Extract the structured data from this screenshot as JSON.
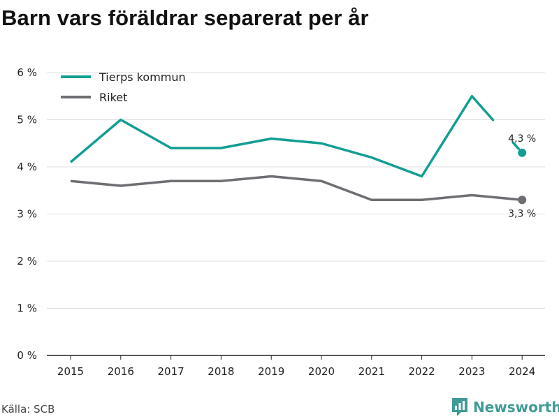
{
  "title": "Barn vars föräldrar separerat per år",
  "source": "Källa: SCB",
  "brand": {
    "name": "Newsworthy",
    "icon": "newsworthy-logo-icon",
    "color": "#3f9b96"
  },
  "chart_data": {
    "type": "line",
    "x": [
      "2015",
      "2016",
      "2017",
      "2018",
      "2019",
      "2020",
      "2021",
      "2022",
      "2023",
      "2024"
    ],
    "series": [
      {
        "name": "Tierps kommun",
        "color": "#139e93",
        "values": [
          4.1,
          5.0,
          4.4,
          4.4,
          4.6,
          4.5,
          4.2,
          3.8,
          5.5,
          4.3
        ],
        "end_label": "4,3 %"
      },
      {
        "name": "Riket",
        "color": "#6e6e73",
        "values": [
          3.7,
          3.6,
          3.7,
          3.7,
          3.8,
          3.7,
          3.3,
          3.3,
          3.4,
          3.3
        ],
        "end_label": "3,3 %"
      }
    ],
    "ylim": [
      0,
      6
    ],
    "yticks": [
      0,
      1,
      2,
      3,
      4,
      5,
      6
    ],
    "ytick_labels": [
      "0 %",
      "1 %",
      "2 %",
      "3 %",
      "4 %",
      "5 %",
      "6 %"
    ],
    "grid": true,
    "legend_position": "top-left",
    "xlabel": "",
    "ylabel": ""
  }
}
